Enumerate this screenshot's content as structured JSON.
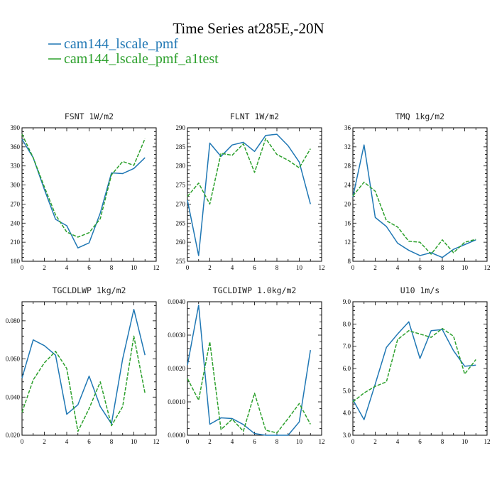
{
  "figure": {
    "title": "Time Series at285E,-20N",
    "legend": [
      {
        "label": "cam144_lscale_pmf",
        "color": "#1f77b4",
        "dash": "solid"
      },
      {
        "label": "cam144_lscale_pmf_a1test",
        "color": "#2ca02c",
        "dash": "dashed"
      }
    ]
  },
  "chart_data": [
    {
      "type": "line",
      "title": "FSNT  1W/m2",
      "x": [
        0,
        1,
        2,
        3,
        4,
        5,
        6,
        7,
        8,
        9,
        10,
        11
      ],
      "xlim": [
        0,
        12
      ],
      "xticks": [
        0,
        2,
        4,
        6,
        8,
        10,
        12
      ],
      "xtick_labels": [
        "0",
        "2",
        "4",
        "6",
        "8",
        "10",
        "12"
      ],
      "ylim": [
        180,
        390
      ],
      "yticks": [
        180,
        210,
        240,
        270,
        300,
        330,
        360,
        390
      ],
      "ytick_labels": [
        "180",
        "210",
        "240",
        "270",
        "300",
        "330",
        "360",
        "390"
      ],
      "series": [
        {
          "name": "cam144_lscale_pmf",
          "values": [
            372,
            343,
            293,
            246,
            236,
            201,
            209,
            256,
            319,
            318,
            326,
            343
          ]
        },
        {
          "name": "cam144_lscale_pmf_a1test",
          "values": [
            380,
            343,
            297,
            253,
            226,
            218,
            225,
            247,
            316,
            337,
            331,
            373
          ]
        }
      ]
    },
    {
      "type": "line",
      "title": "FLNT  1W/m2",
      "x": [
        0,
        1,
        2,
        3,
        4,
        5,
        6,
        7,
        8,
        9,
        10,
        11
      ],
      "xlim": [
        0,
        12
      ],
      "xticks": [
        0,
        2,
        4,
        6,
        8,
        10,
        12
      ],
      "xtick_labels": [
        "0",
        "2",
        "4",
        "6",
        "8",
        "10",
        "12"
      ],
      "ylim": [
        255,
        290
      ],
      "yticks": [
        255,
        260,
        265,
        270,
        275,
        280,
        285,
        290
      ],
      "ytick_labels": [
        "255",
        "260",
        "265",
        "270",
        "275",
        "280",
        "285",
        "290"
      ],
      "series": [
        {
          "name": "cam144_lscale_pmf",
          "values": [
            271,
            256.5,
            286,
            282.5,
            285.5,
            286.2,
            283.8,
            288,
            288.3,
            285.3,
            281,
            270
          ]
        },
        {
          "name": "cam144_lscale_pmf_a1test",
          "values": [
            272,
            275.5,
            270,
            283.3,
            282.8,
            285.8,
            278.3,
            287.2,
            283,
            281.5,
            279.5,
            284.5
          ]
        }
      ]
    },
    {
      "type": "line",
      "title": "TMQ  1kg/m2",
      "x": [
        0,
        1,
        2,
        3,
        4,
        5,
        6,
        7,
        8,
        9,
        10,
        11
      ],
      "xlim": [
        0,
        12
      ],
      "xticks": [
        0,
        2,
        4,
        6,
        8,
        10,
        12
      ],
      "xtick_labels": [
        "0",
        "2",
        "4",
        "6",
        "8",
        "10",
        "12"
      ],
      "ylim": [
        8,
        36
      ],
      "yticks": [
        8,
        12,
        16,
        20,
        24,
        28,
        32,
        36
      ],
      "ytick_labels": [
        "8",
        "12",
        "16",
        "20",
        "24",
        "28",
        "32",
        "36"
      ],
      "series": [
        {
          "name": "cam144_lscale_pmf",
          "values": [
            21.5,
            32.4,
            17.2,
            15.3,
            11.8,
            10.3,
            9.2,
            9.8,
            8.8,
            10.5,
            11.5,
            12.5
          ]
        },
        {
          "name": "cam144_lscale_pmf_a1test",
          "values": [
            21.7,
            24.6,
            22.7,
            16.5,
            15.2,
            12.2,
            12.0,
            9.5,
            12.5,
            9.8,
            12.0,
            12.6
          ]
        }
      ]
    },
    {
      "type": "line",
      "title": "TGCLDLWP  1kg/m2",
      "x": [
        0,
        1,
        2,
        3,
        4,
        5,
        6,
        7,
        8,
        9,
        10,
        11
      ],
      "xlim": [
        0,
        12
      ],
      "xticks": [
        0,
        2,
        4,
        6,
        8,
        10,
        12
      ],
      "xtick_labels": [
        "0",
        "2",
        "4",
        "6",
        "8",
        "10",
        "12"
      ],
      "ylim": [
        0.02,
        0.09
      ],
      "yticks": [
        0.02,
        0.04,
        0.06,
        0.08
      ],
      "ytick_labels": [
        "0.020",
        "0.040",
        "0.060",
        "0.080"
      ],
      "series": [
        {
          "name": "cam144_lscale_pmf",
          "values": [
            0.05,
            0.07,
            0.067,
            0.062,
            0.031,
            0.036,
            0.051,
            0.035,
            0.026,
            0.06,
            0.086,
            0.062
          ]
        },
        {
          "name": "cam144_lscale_pmf_a1test",
          "values": [
            0.032,
            0.049,
            0.058,
            0.064,
            0.055,
            0.022,
            0.034,
            0.048,
            0.025,
            0.035,
            0.072,
            0.042
          ]
        }
      ]
    },
    {
      "type": "line",
      "title": "TGCLDIWP  1.0kg/m2",
      "x": [
        0,
        1,
        2,
        3,
        4,
        5,
        6,
        7,
        8,
        9,
        10,
        11
      ],
      "xlim": [
        0,
        12
      ],
      "xticks": [
        0,
        2,
        4,
        6,
        8,
        10,
        12
      ],
      "xtick_labels": [
        "0",
        "2",
        "4",
        "6",
        "8",
        "10",
        "12"
      ],
      "ylim": [
        0,
        0.004
      ],
      "yticks": [
        0,
        0.001,
        0.002,
        0.003,
        0.004
      ],
      "ytick_labels": [
        "0.0000",
        "0.0010",
        "0.0020",
        "0.0030",
        "0.0040"
      ],
      "series": [
        {
          "name": "cam144_lscale_pmf",
          "values": [
            0.0021,
            0.0039,
            0.00033,
            0.00052,
            0.0005,
            0.00032,
            5e-05,
            0.0,
            0.0,
            0.0,
            0.0004,
            0.00255
          ]
        },
        {
          "name": "cam144_lscale_pmf_a1test",
          "values": [
            0.0017,
            0.00105,
            0.0028,
            0.00017,
            0.00048,
            0.00012,
            0.00126,
            0.00015,
            7e-05,
            0.0005,
            0.00095,
            0.00033
          ]
        }
      ]
    },
    {
      "type": "line",
      "title": "U10  1m/s",
      "x": [
        0,
        1,
        2,
        3,
        4,
        5,
        6,
        7,
        8,
        9,
        10,
        11
      ],
      "xlim": [
        0,
        12
      ],
      "xticks": [
        0,
        2,
        4,
        6,
        8,
        10,
        12
      ],
      "xtick_labels": [
        "0",
        "2",
        "4",
        "6",
        "8",
        "10",
        "12"
      ],
      "ylim": [
        3,
        9
      ],
      "yticks": [
        3,
        4,
        5,
        6,
        7,
        8,
        9
      ],
      "ytick_labels": [
        "3.0",
        "4.0",
        "5.0",
        "6.0",
        "7.0",
        "8.0",
        "9.0"
      ],
      "series": [
        {
          "name": "cam144_lscale_pmf",
          "values": [
            4.6,
            3.7,
            5.3,
            6.95,
            7.55,
            8.1,
            6.45,
            7.7,
            7.75,
            6.8,
            6.1,
            6.15
          ]
        },
        {
          "name": "cam144_lscale_pmf_a1test",
          "values": [
            4.5,
            4.9,
            5.2,
            5.4,
            7.3,
            7.7,
            7.55,
            7.4,
            7.8,
            7.45,
            5.75,
            6.4
          ]
        }
      ]
    }
  ]
}
